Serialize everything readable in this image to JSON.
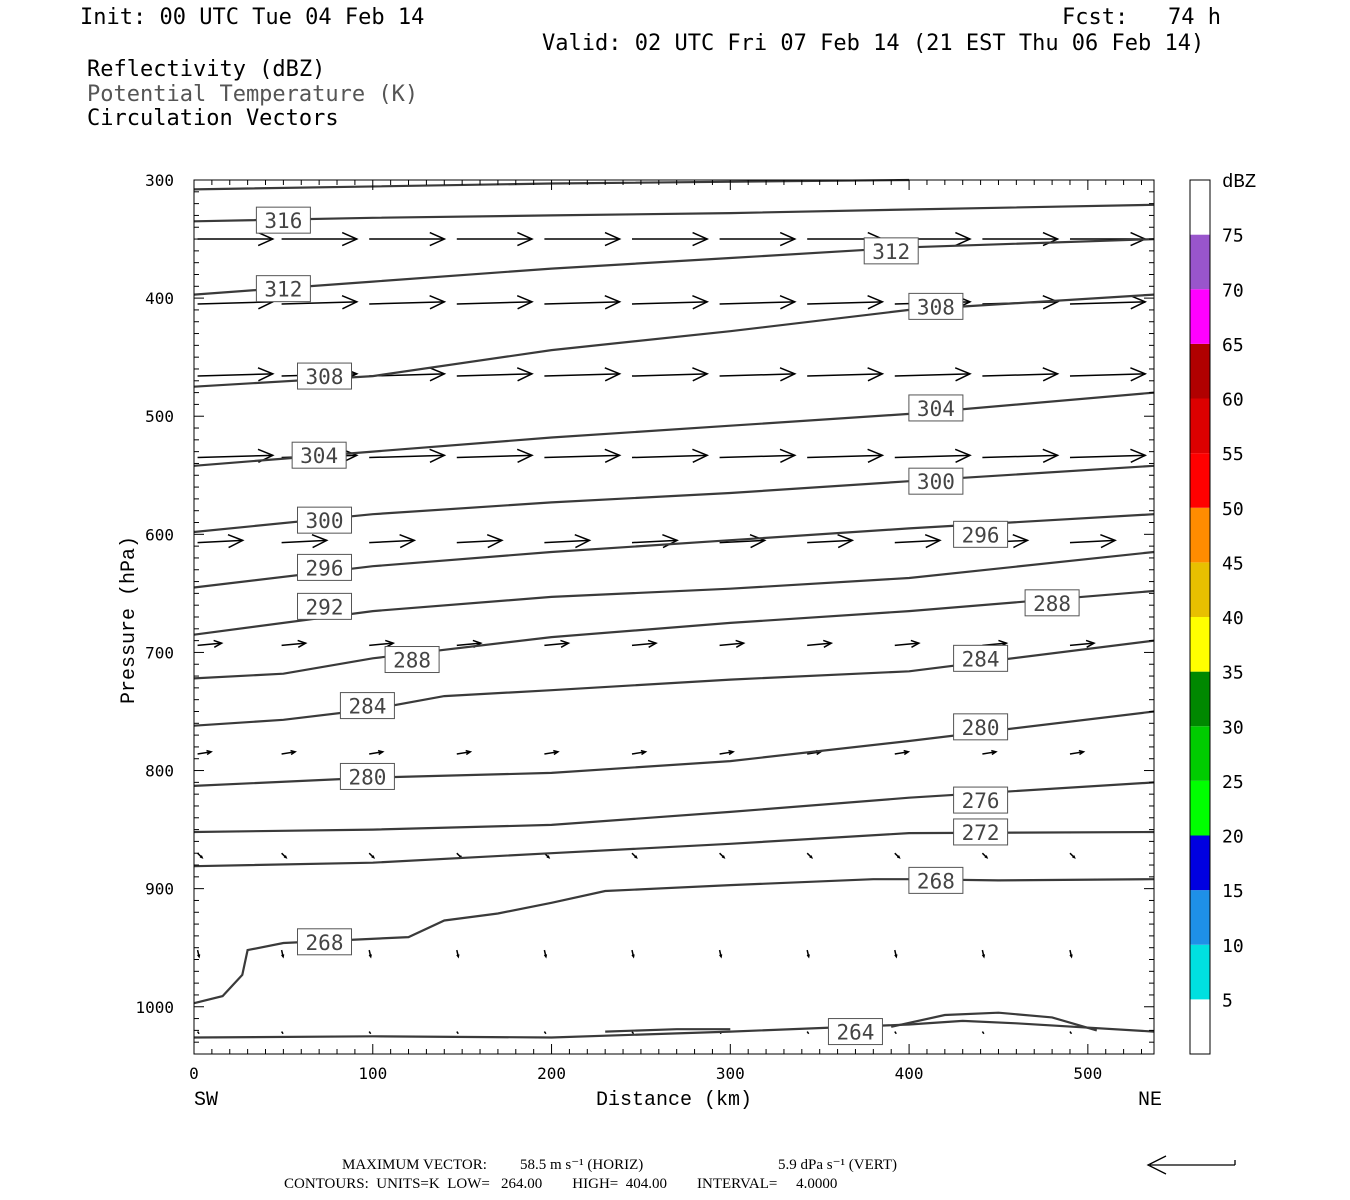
{
  "header": {
    "init": "Init: 00 UTC Tue 04 Feb 14",
    "fcst": "Fcst:   74 h",
    "valid": "Valid: 02 UTC Fri 07 Feb 14 (21 EST Thu 06 Feb 14)",
    "field1": "Reflectivity (dBZ)",
    "field2": "Potential Temperature (K)",
    "field3": "Circulation Vectors"
  },
  "footer": {
    "max_vector_label": "MAXIMUM VECTOR:",
    "horiz": "58.5 m s⁻¹ (HORIZ)",
    "vert": "5.9 dPa s⁻¹ (VERT)",
    "contours": "CONTOURS:  UNITS=K  LOW=   264.00        HIGH=  404.00        INTERVAL=     4.0000"
  },
  "chart_data": {
    "type": "line",
    "xlabel": "Distance (km)",
    "ylabel": "Pressure (hPa)",
    "xlim": [
      0,
      537
    ],
    "ylim": [
      300,
      1040
    ],
    "x_ticks": [
      0,
      100,
      200,
      300,
      400,
      500
    ],
    "y_ticks": [
      300,
      400,
      500,
      600,
      700,
      800,
      900,
      1000
    ],
    "x_end_labels": {
      "left": "SW",
      "right": "NE"
    },
    "line_color": "#3a3a3a",
    "colorbar": {
      "title": "dBZ",
      "labels": [
        "5",
        "10",
        "15",
        "20",
        "25",
        "30",
        "35",
        "40",
        "45",
        "50",
        "55",
        "60",
        "65",
        "70",
        "75"
      ],
      "colors": [
        "#ffffff",
        "#00e0e0",
        "#1e90e8",
        "#0000e0",
        "#00ff00",
        "#00cc00",
        "#008800",
        "#ffff00",
        "#e8c000",
        "#ff8c00",
        "#ff0000",
        "#dd0000",
        "#b00000",
        "#ff00ff",
        "#9955cc",
        "#ffffff"
      ]
    },
    "isentropes": [
      {
        "theta": 316,
        "points": [
          [
            0,
            335
          ],
          [
            100,
            332
          ],
          [
            200,
            330
          ],
          [
            300,
            328
          ],
          [
            400,
            325
          ],
          [
            537,
            321
          ]
        ],
        "labels": [
          [
            50,
            334
          ]
        ]
      },
      {
        "theta": 312,
        "points": [
          [
            0,
            397
          ],
          [
            100,
            386
          ],
          [
            200,
            375
          ],
          [
            300,
            366
          ],
          [
            400,
            357
          ],
          [
            537,
            350
          ]
        ],
        "labels": [
          [
            50,
            392
          ],
          [
            390,
            360
          ]
        ]
      },
      {
        "theta": 308,
        "points": [
          [
            0,
            475
          ],
          [
            100,
            466
          ],
          [
            200,
            444
          ],
          [
            300,
            428
          ],
          [
            400,
            410
          ],
          [
            537,
            397
          ]
        ],
        "labels": [
          [
            73,
            466
          ],
          [
            415,
            407
          ]
        ]
      },
      {
        "theta": 304,
        "points": [
          [
            0,
            542
          ],
          [
            100,
            530
          ],
          [
            200,
            518
          ],
          [
            300,
            508
          ],
          [
            400,
            498
          ],
          [
            537,
            480
          ]
        ],
        "labels": [
          [
            70,
            533
          ],
          [
            415,
            493
          ]
        ]
      },
      {
        "theta": 300,
        "points": [
          [
            0,
            598
          ],
          [
            100,
            583
          ],
          [
            200,
            573
          ],
          [
            300,
            565
          ],
          [
            400,
            555
          ],
          [
            537,
            542
          ]
        ],
        "labels": [
          [
            73,
            588
          ],
          [
            415,
            555
          ]
        ]
      },
      {
        "theta": 296,
        "points": [
          [
            0,
            645
          ],
          [
            100,
            627
          ],
          [
            200,
            615
          ],
          [
            300,
            605
          ],
          [
            400,
            595
          ],
          [
            537,
            583
          ]
        ],
        "labels": [
          [
            73,
            628
          ],
          [
            440,
            600
          ]
        ]
      },
      {
        "theta": 292,
        "points": [
          [
            0,
            685
          ],
          [
            100,
            665
          ],
          [
            200,
            653
          ],
          [
            300,
            646
          ],
          [
            400,
            637
          ],
          [
            537,
            615
          ]
        ],
        "labels": [
          [
            73,
            661
          ]
        ]
      },
      {
        "theta": 288,
        "points": [
          [
            0,
            722
          ],
          [
            50,
            718
          ],
          [
            100,
            705
          ],
          [
            200,
            687
          ],
          [
            300,
            675
          ],
          [
            400,
            665
          ],
          [
            537,
            648
          ]
        ],
        "labels": [
          [
            122,
            706
          ],
          [
            480,
            658
          ]
        ]
      },
      {
        "theta": 284,
        "points": [
          [
            0,
            762
          ],
          [
            50,
            757
          ],
          [
            100,
            748
          ],
          [
            140,
            737
          ],
          [
            200,
            732
          ],
          [
            300,
            723
          ],
          [
            400,
            716
          ],
          [
            537,
            690
          ]
        ],
        "labels": [
          [
            97,
            745
          ],
          [
            440,
            705
          ]
        ]
      },
      {
        "theta": 280,
        "points": [
          [
            0,
            813
          ],
          [
            100,
            806
          ],
          [
            200,
            802
          ],
          [
            300,
            792
          ],
          [
            400,
            775
          ],
          [
            537,
            750
          ]
        ],
        "labels": [
          [
            97,
            805
          ],
          [
            440,
            763
          ]
        ]
      },
      {
        "theta": 276,
        "points": [
          [
            0,
            852
          ],
          [
            100,
            850
          ],
          [
            200,
            846
          ],
          [
            300,
            835
          ],
          [
            400,
            823
          ],
          [
            537,
            810
          ]
        ],
        "labels": [
          [
            440,
            825
          ]
        ]
      },
      {
        "theta": 272,
        "points": [
          [
            0,
            881
          ],
          [
            100,
            878
          ],
          [
            200,
            870
          ],
          [
            300,
            862
          ],
          [
            400,
            853
          ],
          [
            537,
            852
          ]
        ],
        "labels": [
          [
            440,
            852
          ]
        ]
      },
      {
        "theta": 268,
        "points": [
          [
            0,
            997
          ],
          [
            16,
            991
          ],
          [
            27,
            973
          ],
          [
            30,
            952
          ],
          [
            50,
            946
          ],
          [
            120,
            941
          ],
          [
            140,
            927
          ],
          [
            170,
            921
          ],
          [
            200,
            912
          ],
          [
            230,
            902
          ],
          [
            300,
            897
          ],
          [
            380,
            892
          ],
          [
            400,
            892
          ],
          [
            450,
            893
          ],
          [
            537,
            892
          ]
        ],
        "labels": [
          [
            73,
            945
          ],
          [
            415,
            893
          ]
        ]
      },
      {
        "theta": 264,
        "points": [
          [
            0,
            1026
          ],
          [
            100,
            1025
          ],
          [
            200,
            1026
          ],
          [
            300,
            1021
          ],
          [
            400,
            1015
          ],
          [
            430,
            1012
          ],
          [
            460,
            1014
          ],
          [
            537,
            1021
          ]
        ],
        "labels": [
          [
            370,
            1021
          ]
        ]
      }
    ],
    "extra_contours": [
      {
        "points": [
          [
            390,
            1017
          ],
          [
            420,
            1007
          ],
          [
            450,
            1005
          ],
          [
            480,
            1009
          ],
          [
            505,
            1020
          ]
        ]
      },
      {
        "points": [
          [
            230,
            1021
          ],
          [
            270,
            1019
          ],
          [
            300,
            1019
          ]
        ]
      },
      {
        "points": [
          [
            0,
            308
          ],
          [
            200,
            303
          ],
          [
            400,
            300
          ]
        ]
      }
    ],
    "vector_rows": [
      {
        "p": 350,
        "u": 50,
        "w": 0
      },
      {
        "p": 405,
        "u": 50,
        "w": -1
      },
      {
        "p": 466,
        "u": 50,
        "w": -1
      },
      {
        "p": 535,
        "u": 50,
        "w": -1
      },
      {
        "p": 607,
        "u": 30,
        "w": -1
      },
      {
        "p": 694,
        "u": 16,
        "w": -1
      },
      {
        "p": 786,
        "u": 9,
        "w": -1
      },
      {
        "p": 870,
        "u": 3,
        "w": 2
      },
      {
        "p": 952,
        "u": 1,
        "w": 3
      },
      {
        "p": 1021,
        "u": 1,
        "w": 1
      }
    ],
    "vector_x": [
      2,
      49,
      98,
      147,
      196,
      245,
      294,
      343,
      392,
      441,
      490
    ],
    "max_vector_arrow": "←"
  }
}
